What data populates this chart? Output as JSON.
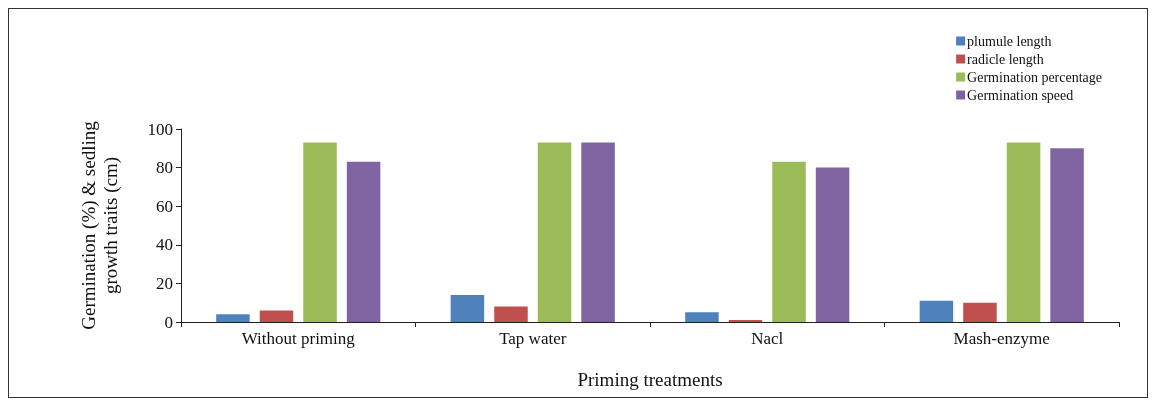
{
  "chart_data": {
    "type": "bar",
    "xlabel": "Priming treatments",
    "ylabel": "Germination (%) & sedling\ngrowth traits (cm)",
    "categories": [
      "Without priming",
      "Tap water",
      "Nacl",
      "Mash-enzyme"
    ],
    "series": [
      {
        "name": "plumule length",
        "color": "#4f81bd",
        "values": [
          4,
          14,
          5,
          11
        ]
      },
      {
        "name": "radicle length",
        "color": "#c0504d",
        "values": [
          6,
          8,
          1,
          10
        ]
      },
      {
        "name": "Germination percentage",
        "color": "#9bbb59",
        "values": [
          93,
          93,
          83,
          93
        ]
      },
      {
        "name": "Germination speed",
        "color": "#8064a2",
        "values": [
          83,
          93,
          80,
          90
        ]
      }
    ],
    "ylim": [
      0,
      100
    ],
    "yticks": [
      0,
      20,
      40,
      60,
      80,
      100
    ],
    "grid": false,
    "legend": "top right"
  }
}
